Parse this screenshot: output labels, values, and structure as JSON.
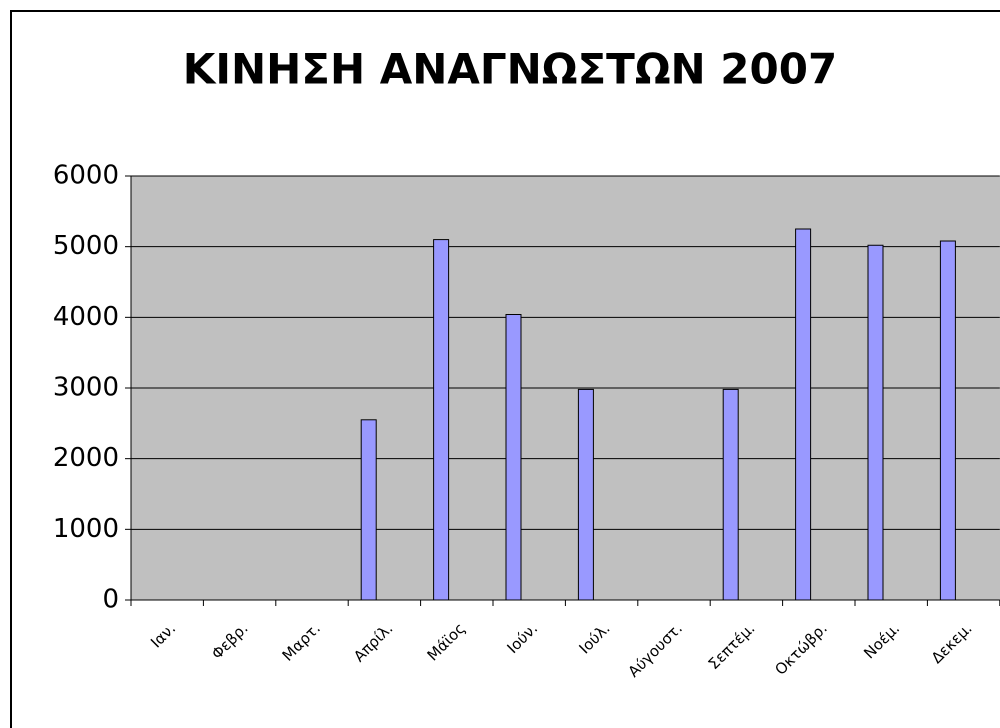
{
  "chart_data": {
    "type": "bar",
    "title": "ΚΙΝΗΣΗ ΑΝΑΓΝΩΣΤΩΝ 2007",
    "categories": [
      "Ιαν.",
      "Φεβρ.",
      "Μαρτ.",
      "Απρίλ.",
      "Μάϊος",
      "Ιούν.",
      "Ιούλ.",
      "Αύγουστ.",
      "Σεπτέμ.",
      "Οκτώβρ.",
      "Νοέμ.",
      "Δεκεμ."
    ],
    "values": [
      null,
      null,
      null,
      2550,
      5100,
      4040,
      2980,
      null,
      2980,
      5250,
      5020,
      5080
    ],
    "color": "#9999ff",
    "ylim": [
      0,
      6000
    ],
    "yticks": [
      0,
      1000,
      2000,
      3000,
      4000,
      5000,
      6000
    ],
    "grid": true
  }
}
